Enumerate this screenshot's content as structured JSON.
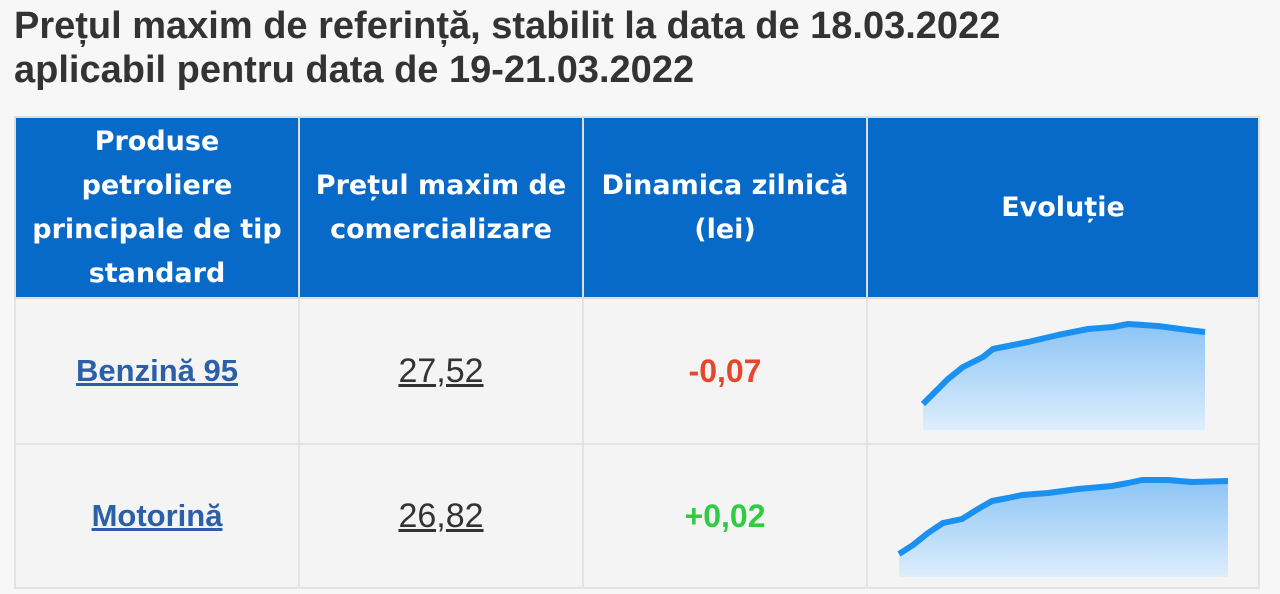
{
  "header": {
    "title_lines": [
      "Prețul maxim de referință, stabilit la data de 18.03.2022",
      "aplicabil pentru data de 19-21.03.2022"
    ]
  },
  "table": {
    "headers": [
      "Produse petroliere principale de tip standard",
      "Prețul maxim de comercializare",
      "Dinamica zilnică (lei)",
      "Evoluție"
    ],
    "rows": [
      [
        "Benzină 95",
        "27,52",
        "-0,07"
      ],
      [
        "Motorină",
        "26,82",
        "+0,02"
      ]
    ]
  }
}
